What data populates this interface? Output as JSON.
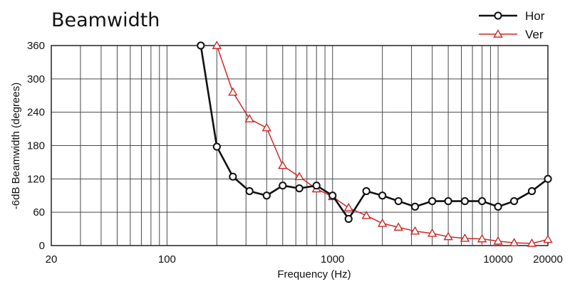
{
  "chart_data": {
    "type": "line",
    "title": "Beamwidth",
    "xlabel": "Frequency (Hz)",
    "ylabel": "-6dB Beamwidth (degrees)",
    "xscale": "log",
    "xlim": [
      20,
      20000
    ],
    "ylim": [
      0,
      360
    ],
    "x_tick_labels": [
      "20",
      "100",
      "1000",
      "10000",
      "20000"
    ],
    "y_tick_labels": [
      "0",
      "60",
      "120",
      "180",
      "240",
      "300",
      "360"
    ],
    "grid": true,
    "legend_position": "top-right",
    "series": [
      {
        "name": "Hor",
        "color": "#111111",
        "marker": "circle",
        "x": [
          160,
          200,
          250,
          315,
          400,
          500,
          630,
          800,
          1000,
          1250,
          1600,
          2000,
          2500,
          3150,
          4000,
          5000,
          6300,
          8000,
          10000,
          12500,
          16000,
          20000
        ],
        "y": [
          360,
          178,
          124,
          98,
          90,
          108,
          103,
          108,
          90,
          48,
          98,
          90,
          80,
          70,
          80,
          80,
          80,
          80,
          70,
          80,
          98,
          120
        ]
      },
      {
        "name": "Ver",
        "color": "#cc2a27",
        "marker": "triangle",
        "x": [
          200,
          250,
          315,
          400,
          500,
          630,
          800,
          1000,
          1250,
          1600,
          2000,
          2500,
          3150,
          4000,
          5000,
          6300,
          8000,
          10000,
          12500,
          16000,
          20000
        ],
        "y": [
          360,
          276,
          228,
          212,
          144,
          124,
          102,
          88,
          68,
          54,
          40,
          33,
          26,
          22,
          16,
          13,
          12,
          8,
          5,
          4,
          11
        ]
      }
    ]
  }
}
